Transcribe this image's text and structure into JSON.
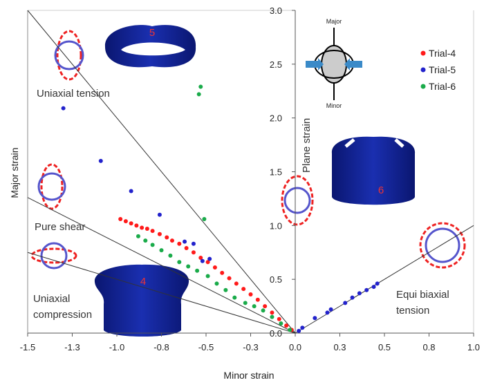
{
  "chart_data": {
    "type": "scatter",
    "x_label": "Minor strain",
    "y_label": "Major strain",
    "xlim": [
      -1.5,
      1.0
    ],
    "ylim": [
      0,
      3.0
    ],
    "xticks": [
      -1.5,
      {
        "value": -1.25,
        "label": "-1.3"
      },
      {
        "value": -1,
        "label": "-1.0"
      },
      {
        "value": -0.75,
        "label": "-0.8"
      },
      -0.5,
      {
        "value": -0.25,
        "label": "-0.3"
      },
      {
        "value": 0,
        "label": "0.0"
      },
      {
        "value": 0.25,
        "label": "0.3"
      },
      0.5,
      {
        "value": 0.75,
        "label": "0.8"
      },
      {
        "value": 1,
        "label": "1.0"
      }
    ],
    "yticks": [
      {
        "value": 0,
        "label": "0.0"
      },
      0.5,
      {
        "value": 1,
        "label": "1.0"
      },
      1.5,
      {
        "value": 2,
        "label": "2.0"
      },
      2.5,
      {
        "value": 3,
        "label": "3.0"
      }
    ],
    "legend": "upper right",
    "series": [
      {
        "name": "Trial-4",
        "color": "#ff1a1a",
        "x": [
          -0.98,
          -0.95,
          -0.92,
          -0.89,
          -0.86,
          -0.83,
          -0.8,
          -0.76,
          -0.72,
          -0.69,
          -0.65,
          -0.61,
          -0.57,
          -0.53,
          -0.49,
          -0.45,
          -0.41,
          -0.37,
          -0.33,
          -0.29,
          -0.25,
          -0.21,
          -0.17,
          -0.13,
          -0.09,
          -0.05,
          -0.02
        ],
        "values": [
          1.06,
          1.04,
          1.02,
          1.0,
          0.98,
          0.97,
          0.95,
          0.92,
          0.89,
          0.86,
          0.83,
          0.79,
          0.75,
          0.7,
          0.66,
          0.61,
          0.56,
          0.51,
          0.46,
          0.41,
          0.36,
          0.31,
          0.25,
          0.19,
          0.13,
          0.07,
          0.03
        ]
      },
      {
        "name": "Trial-5",
        "color": "#2222cc",
        "x": [
          -1.3,
          -1.09,
          -0.92,
          -0.76,
          -0.62,
          -0.57,
          -0.52,
          -0.48,
          0.02,
          0.04,
          0.11,
          0.18,
          0.2,
          0.28,
          0.32,
          0.36,
          0.4,
          0.44,
          0.46
        ],
        "values": [
          2.09,
          1.6,
          1.32,
          1.1,
          0.85,
          0.83,
          0.67,
          0.69,
          0.02,
          0.05,
          0.14,
          0.19,
          0.22,
          0.28,
          0.33,
          0.37,
          0.4,
          0.43,
          0.46
        ]
      },
      {
        "name": "Trial-6",
        "color": "#1aab4a",
        "x": [
          -0.53,
          -0.54,
          -0.51,
          -0.88,
          -0.84,
          -0.8,
          -0.75,
          -0.7,
          -0.65,
          -0.6,
          -0.55,
          -0.49,
          -0.44,
          -0.39,
          -0.34,
          -0.28,
          -0.23,
          -0.18,
          -0.13,
          -0.08,
          -0.03
        ],
        "values": [
          2.29,
          2.22,
          1.06,
          0.9,
          0.86,
          0.82,
          0.77,
          0.72,
          0.66,
          0.62,
          0.58,
          0.53,
          0.46,
          0.4,
          0.33,
          0.28,
          0.25,
          0.21,
          0.15,
          0.09,
          0.03
        ]
      }
    ],
    "reference_lines": [
      {
        "x": [
          -1.5,
          0
        ],
        "y": [
          3.0,
          0
        ]
      },
      {
        "x": [
          -1.5,
          0
        ],
        "y": [
          1.26,
          0
        ]
      },
      {
        "x": [
          -1.5,
          0
        ],
        "y": [
          0.75,
          0
        ]
      },
      {
        "x": [
          0,
          1.0
        ],
        "y": [
          0,
          1.0
        ]
      }
    ],
    "annotations": [
      "Uniaxial tension",
      "Pure shear",
      "Uniaxial",
      "compression",
      "Plane strain",
      "Equi biaxial",
      "tension",
      "Major",
      "Minor",
      "4",
      "5",
      "6"
    ]
  }
}
